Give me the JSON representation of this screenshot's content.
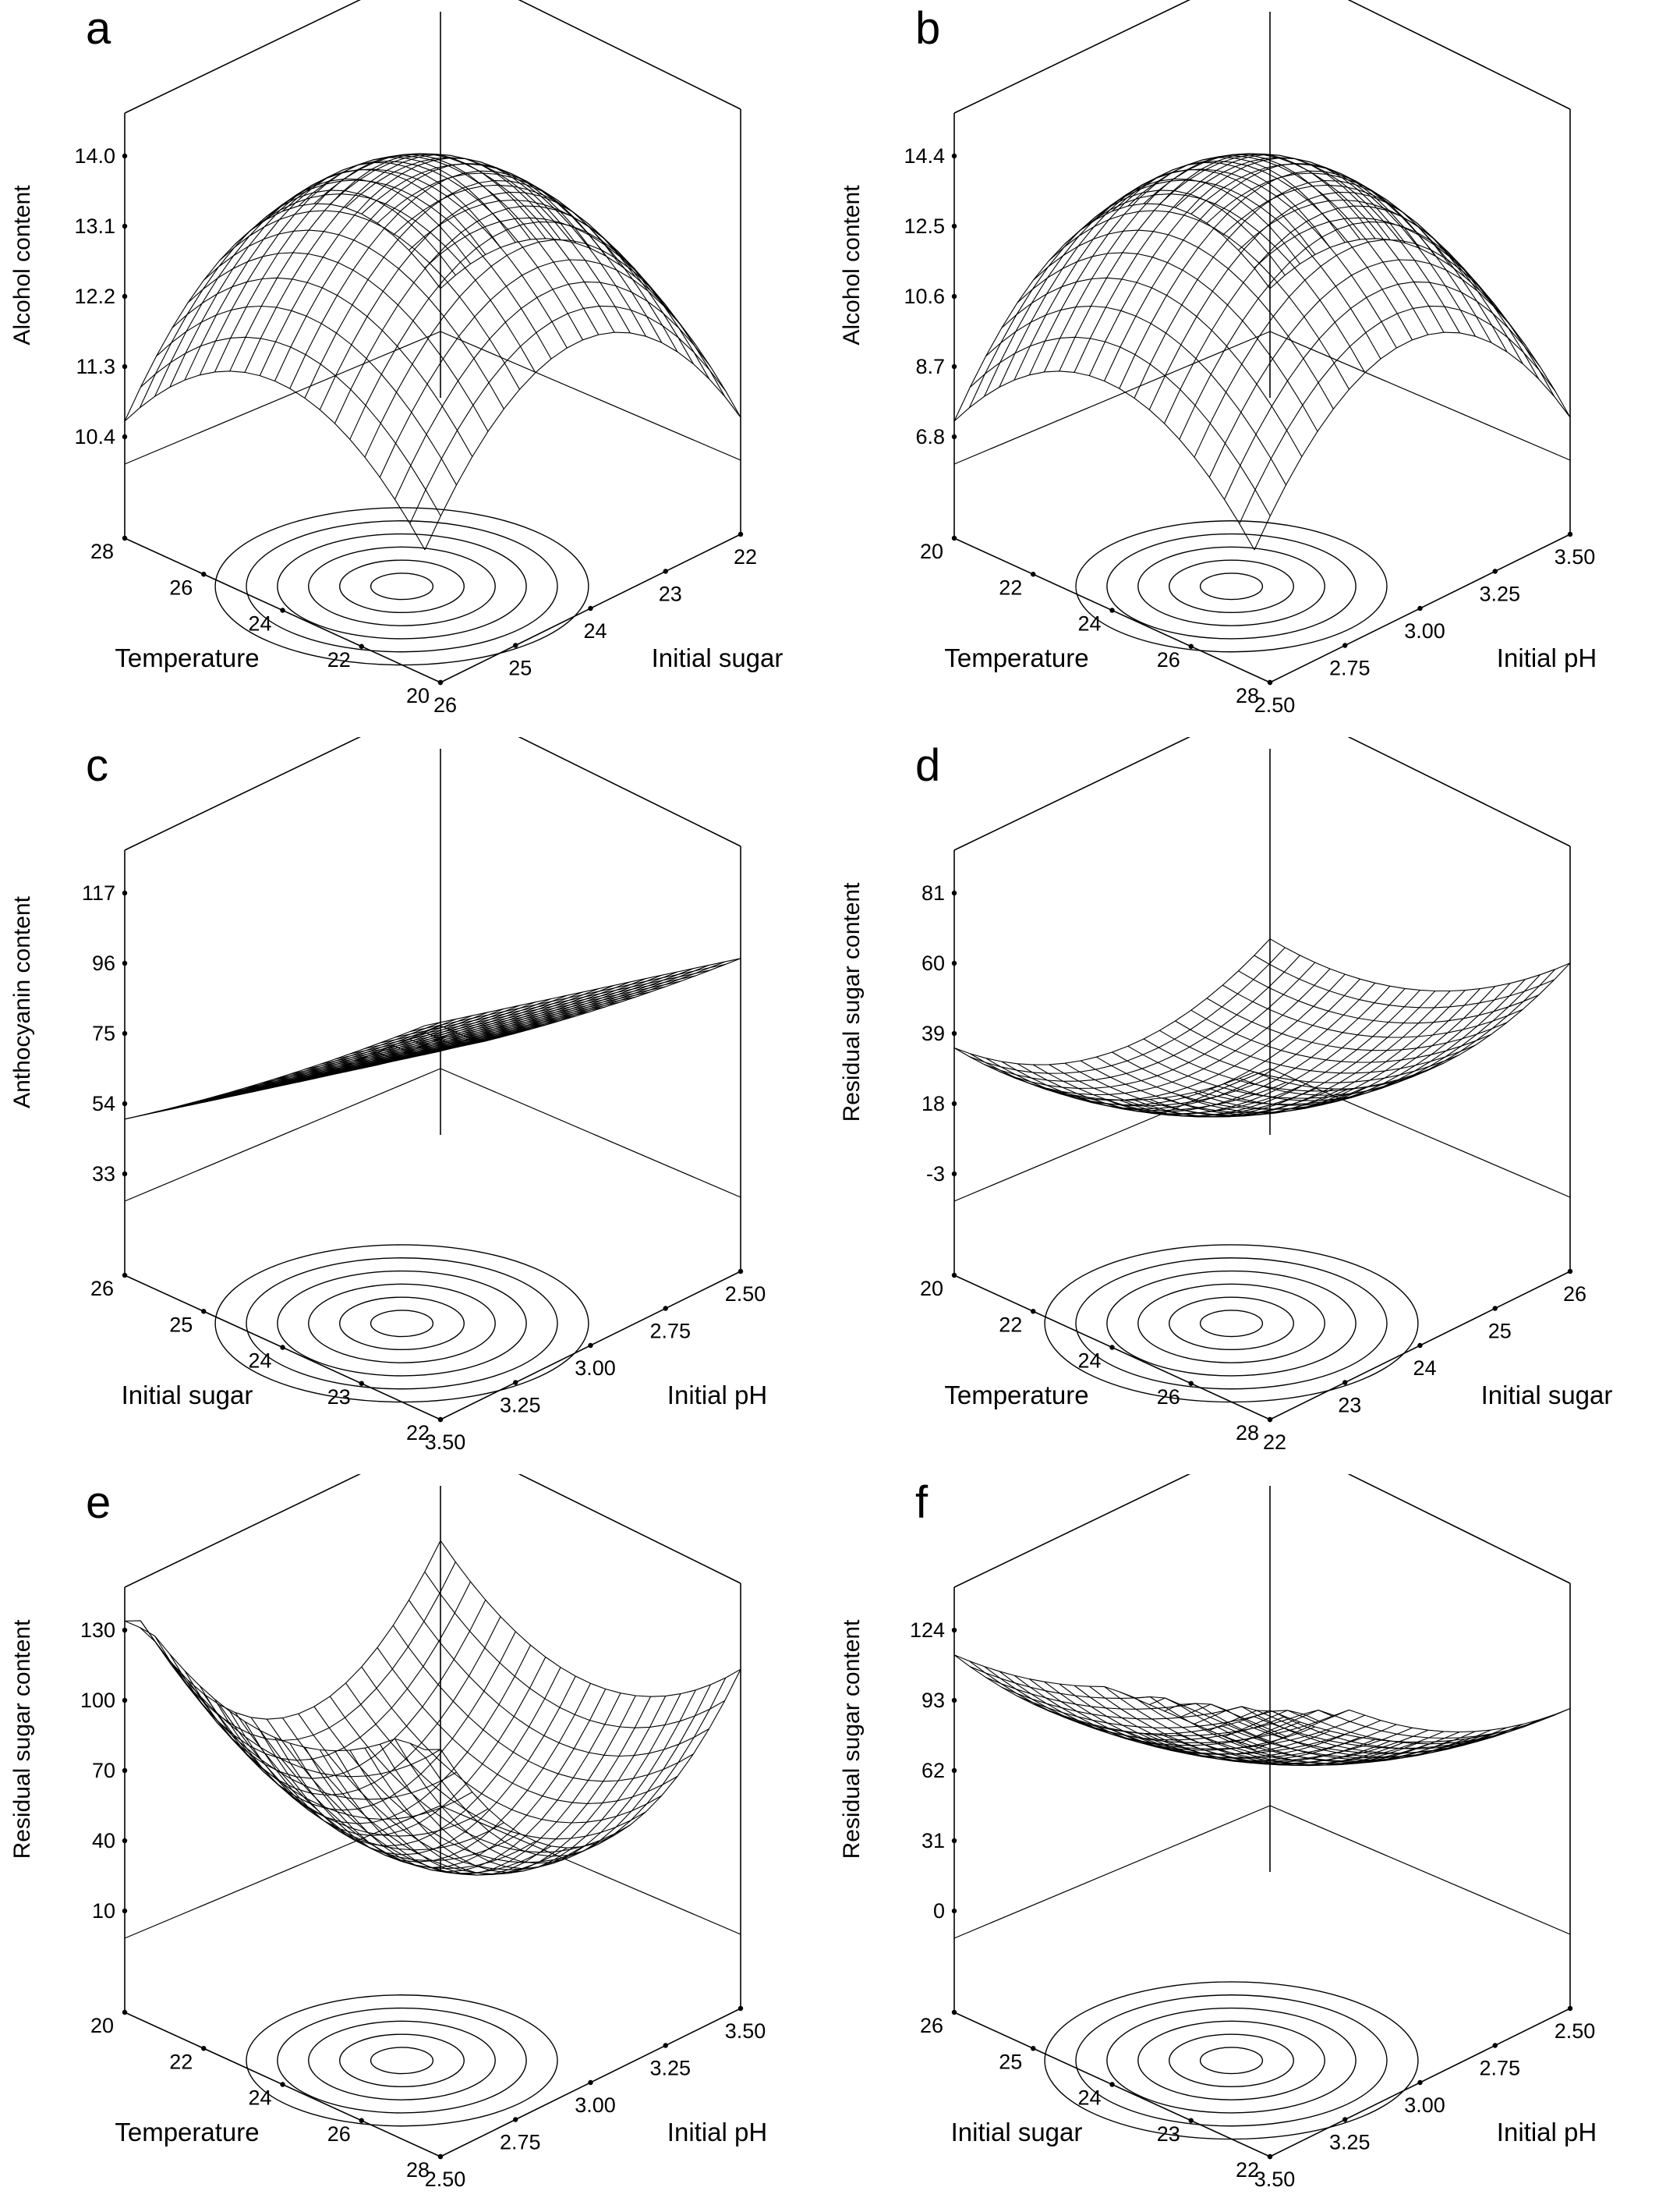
{
  "figure": {
    "panels": [
      {
        "letter": "a",
        "chart_data": {
          "type": "surface3d",
          "zlabel": "Alcohol content",
          "z_ticks": [
            "10.4",
            "11.3",
            "12.2",
            "13.1",
            "14.0"
          ],
          "left_axis": {
            "label": "Temperature",
            "ticks": [
              "28",
              "26",
              "24",
              "22",
              "20"
            ]
          },
          "right_axis": {
            "label": "Initial sugar",
            "ticks": [
              "26",
              "25",
              "24",
              "23",
              "22"
            ]
          },
          "shape": "dome",
          "contour_levels": 6
        }
      },
      {
        "letter": "b",
        "chart_data": {
          "type": "surface3d",
          "zlabel": "Alcohol content",
          "z_ticks": [
            "6.8",
            "8.7",
            "10.6",
            "12.5",
            "14.4"
          ],
          "left_axis": {
            "label": "Temperature",
            "ticks": [
              "20",
              "22",
              "24",
              "26",
              "28"
            ]
          },
          "right_axis": {
            "label": "Initial pH",
            "ticks": [
              "2.50",
              "2.75",
              "3.00",
              "3.25",
              "3.50"
            ]
          },
          "shape": "dome",
          "contour_levels": 5
        }
      },
      {
        "letter": "c",
        "chart_data": {
          "type": "surface3d",
          "zlabel": "Anthocyanin content",
          "z_ticks": [
            "33",
            "54",
            "75",
            "96",
            "117"
          ],
          "left_axis": {
            "label": "Initial sugar",
            "ticks": [
              "26",
              "25",
              "24",
              "23",
              "22"
            ]
          },
          "right_axis": {
            "label": "Initial pH",
            "ticks": [
              "3.50",
              "3.25",
              "3.00",
              "2.75",
              "2.50"
            ]
          },
          "shape": "slope",
          "contour_levels": 6
        }
      },
      {
        "letter": "d",
        "chart_data": {
          "type": "surface3d",
          "zlabel": "Residual sugar content",
          "z_ticks": [
            "-3",
            "18",
            "39",
            "60",
            "81"
          ],
          "left_axis": {
            "label": "Temperature",
            "ticks": [
              "20",
              "22",
              "24",
              "26",
              "28"
            ]
          },
          "right_axis": {
            "label": "Initial sugar",
            "ticks": [
              "22",
              "23",
              "24",
              "25",
              "26"
            ]
          },
          "shape": "saddle",
          "contour_levels": 6
        }
      },
      {
        "letter": "e",
        "chart_data": {
          "type": "surface3d",
          "zlabel": "Residual sugar content",
          "z_ticks": [
            "10",
            "40",
            "70",
            "100",
            "130"
          ],
          "left_axis": {
            "label": "Temperature",
            "ticks": [
              "20",
              "22",
              "24",
              "26",
              "28"
            ]
          },
          "right_axis": {
            "label": "Initial pH",
            "ticks": [
              "2.50",
              "2.75",
              "3.00",
              "3.25",
              "3.50"
            ]
          },
          "shape": "bowl",
          "contour_levels": 5
        }
      },
      {
        "letter": "f",
        "chart_data": {
          "type": "surface3d",
          "zlabel": "Residual sugar content",
          "z_ticks": [
            "0",
            "31",
            "62",
            "93",
            "124"
          ],
          "left_axis": {
            "label": "Initial sugar",
            "ticks": [
              "26",
              "25",
              "24",
              "23",
              "22"
            ]
          },
          "right_axis": {
            "label": "Initial pH",
            "ticks": [
              "3.50",
              "3.25",
              "3.00",
              "2.75",
              "2.50"
            ]
          },
          "shape": "saddle2",
          "contour_levels": 6
        }
      }
    ]
  }
}
